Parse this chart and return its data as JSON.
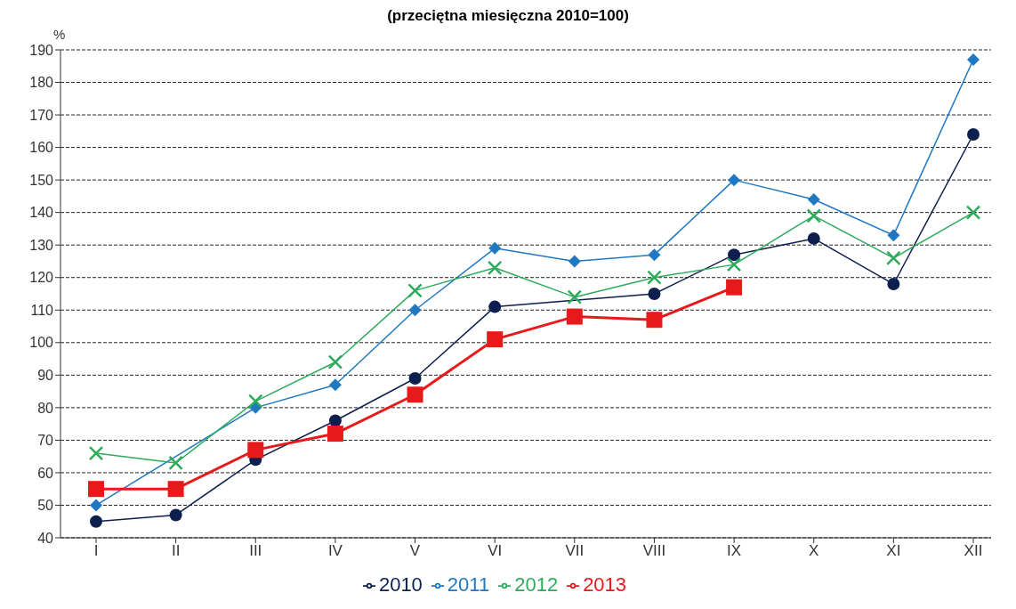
{
  "chart_data": {
    "type": "line",
    "title": "(przeciętna miesięczna 2010=100)",
    "ylabel": "%",
    "categories": [
      "I",
      "II",
      "III",
      "IV",
      "V",
      "VI",
      "VII",
      "VIII",
      "IX",
      "X",
      "XI",
      "XII"
    ],
    "ylim": [
      40,
      190
    ],
    "yticks": [
      40,
      50,
      60,
      70,
      80,
      90,
      100,
      110,
      120,
      130,
      140,
      150,
      160,
      170,
      180,
      190
    ],
    "grid": "y",
    "legend": "bottom",
    "series": [
      {
        "name": "2010",
        "color": "#0d1f4f",
        "marker": "circle",
        "values": [
          45,
          47,
          64,
          76,
          89,
          111,
          null,
          115,
          127,
          132,
          118,
          164
        ]
      },
      {
        "name": "2011",
        "color": "#1f78c1",
        "marker": "diamond",
        "values": [
          50,
          null,
          80,
          87,
          110,
          129,
          125,
          127,
          150,
          144,
          133,
          187
        ]
      },
      {
        "name": "2012",
        "color": "#2eaa5c",
        "marker": "cross",
        "values": [
          66,
          63,
          82,
          94,
          116,
          123,
          114,
          120,
          124,
          139,
          126,
          140
        ]
      },
      {
        "name": "2013",
        "color": "#e8191b",
        "marker": "square",
        "values": [
          55,
          55,
          67,
          72,
          84,
          101,
          108,
          107,
          117,
          null,
          null,
          null
        ]
      }
    ]
  }
}
